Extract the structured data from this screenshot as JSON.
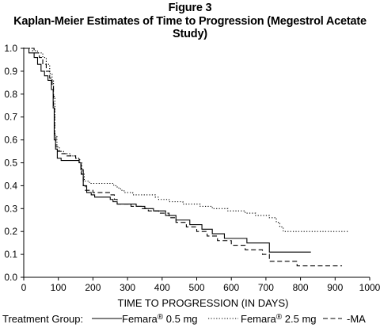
{
  "figure": {
    "label": "Figure 3",
    "title": "Kaplan-Meier Estimates of Time to Progression (Megestrol Acetate Study)"
  },
  "chart_data": {
    "type": "line",
    "title": "Kaplan-Meier Estimates of Time to Progression (Megestrol Acetate Study)",
    "xlabel": "TIME TO PROGRESSION (IN DAYS)",
    "ylabel": "",
    "xlim": [
      0,
      1000
    ],
    "ylim": [
      0,
      1.0
    ],
    "x_ticks": [
      0,
      100,
      200,
      300,
      400,
      500,
      600,
      700,
      800,
      900,
      1000
    ],
    "y_ticks": [
      0.0,
      0.1,
      0.2,
      0.3,
      0.4,
      0.5,
      0.6,
      0.7,
      0.8,
      0.9,
      1.0
    ],
    "y_tick_labels": [
      "0.0",
      "0.1",
      "0.2",
      "0.3",
      "0.4",
      "0.5",
      "0.6",
      "0.7",
      "0.8",
      "0.9",
      "1.0"
    ],
    "grid": false,
    "step": true,
    "legend": {
      "placement": "bottom",
      "prefix": "Treatment Group:",
      "entries": [
        {
          "series": 0,
          "label_pre": "Femara",
          "mark": "®",
          "label_post": " 0.5 mg"
        },
        {
          "series": 1,
          "label_pre": "Femara",
          "mark": "®",
          "label_post": " 2.5 mg"
        },
        {
          "series": 2,
          "label_pre": "-MA",
          "mark": "",
          "label_post": ""
        }
      ]
    },
    "series": [
      {
        "name": "Femara® 0.5 mg",
        "style": "solid",
        "points": [
          [
            0,
            1.0
          ],
          [
            10,
            1.0
          ],
          [
            15,
            0.98
          ],
          [
            30,
            0.96
          ],
          [
            40,
            0.93
          ],
          [
            50,
            0.9
          ],
          [
            60,
            0.88
          ],
          [
            70,
            0.86
          ],
          [
            80,
            0.82
          ],
          [
            85,
            0.74
          ],
          [
            88,
            0.6
          ],
          [
            92,
            0.56
          ],
          [
            97,
            0.52
          ],
          [
            108,
            0.51
          ],
          [
            125,
            0.51
          ],
          [
            160,
            0.5
          ],
          [
            165,
            0.47
          ],
          [
            172,
            0.4
          ],
          [
            182,
            0.37
          ],
          [
            195,
            0.36
          ],
          [
            205,
            0.35
          ],
          [
            250,
            0.34
          ],
          [
            258,
            0.33
          ],
          [
            270,
            0.32
          ],
          [
            325,
            0.31
          ],
          [
            350,
            0.3
          ],
          [
            375,
            0.29
          ],
          [
            410,
            0.27
          ],
          [
            440,
            0.25
          ],
          [
            480,
            0.23
          ],
          [
            515,
            0.21
          ],
          [
            545,
            0.19
          ],
          [
            580,
            0.17
          ],
          [
            645,
            0.15
          ],
          [
            710,
            0.11
          ],
          [
            830,
            0.11
          ]
        ]
      },
      {
        "name": "Femara® 2.5 mg",
        "style": "dotted",
        "points": [
          [
            0,
            1.0
          ],
          [
            20,
            1.0
          ],
          [
            25,
            0.99
          ],
          [
            40,
            0.98
          ],
          [
            55,
            0.96
          ],
          [
            65,
            0.93
          ],
          [
            75,
            0.89
          ],
          [
            82,
            0.86
          ],
          [
            86,
            0.79
          ],
          [
            90,
            0.62
          ],
          [
            96,
            0.57
          ],
          [
            103,
            0.55
          ],
          [
            115,
            0.54
          ],
          [
            135,
            0.53
          ],
          [
            150,
            0.52
          ],
          [
            162,
            0.5
          ],
          [
            168,
            0.45
          ],
          [
            175,
            0.42
          ],
          [
            190,
            0.41
          ],
          [
            260,
            0.4
          ],
          [
            270,
            0.39
          ],
          [
            280,
            0.38
          ],
          [
            290,
            0.37
          ],
          [
            315,
            0.36
          ],
          [
            380,
            0.35
          ],
          [
            390,
            0.34
          ],
          [
            420,
            0.33
          ],
          [
            460,
            0.32
          ],
          [
            510,
            0.31
          ],
          [
            545,
            0.3
          ],
          [
            590,
            0.29
          ],
          [
            640,
            0.28
          ],
          [
            670,
            0.27
          ],
          [
            710,
            0.26
          ],
          [
            730,
            0.24
          ],
          [
            740,
            0.22
          ],
          [
            750,
            0.2
          ],
          [
            940,
            0.2
          ]
        ]
      },
      {
        "name": "MA",
        "style": "dashed",
        "points": [
          [
            0,
            1.0
          ],
          [
            20,
            1.0
          ],
          [
            30,
            0.98
          ],
          [
            45,
            0.96
          ],
          [
            55,
            0.93
          ],
          [
            65,
            0.9
          ],
          [
            75,
            0.87
          ],
          [
            82,
            0.84
          ],
          [
            86,
            0.75
          ],
          [
            89,
            0.62
          ],
          [
            93,
            0.57
          ],
          [
            98,
            0.55
          ],
          [
            108,
            0.54
          ],
          [
            125,
            0.53
          ],
          [
            150,
            0.52
          ],
          [
            160,
            0.5
          ],
          [
            166,
            0.45
          ],
          [
            172,
            0.4
          ],
          [
            178,
            0.38
          ],
          [
            200,
            0.37
          ],
          [
            250,
            0.36
          ],
          [
            262,
            0.34
          ],
          [
            270,
            0.32
          ],
          [
            310,
            0.31
          ],
          [
            340,
            0.3
          ],
          [
            360,
            0.29
          ],
          [
            390,
            0.28
          ],
          [
            420,
            0.26
          ],
          [
            440,
            0.24
          ],
          [
            470,
            0.22
          ],
          [
            500,
            0.2
          ],
          [
            530,
            0.18
          ],
          [
            560,
            0.16
          ],
          [
            600,
            0.14
          ],
          [
            640,
            0.12
          ],
          [
            690,
            0.1
          ],
          [
            710,
            0.07
          ],
          [
            760,
            0.07
          ],
          [
            790,
            0.05
          ],
          [
            920,
            0.05
          ]
        ]
      }
    ]
  }
}
